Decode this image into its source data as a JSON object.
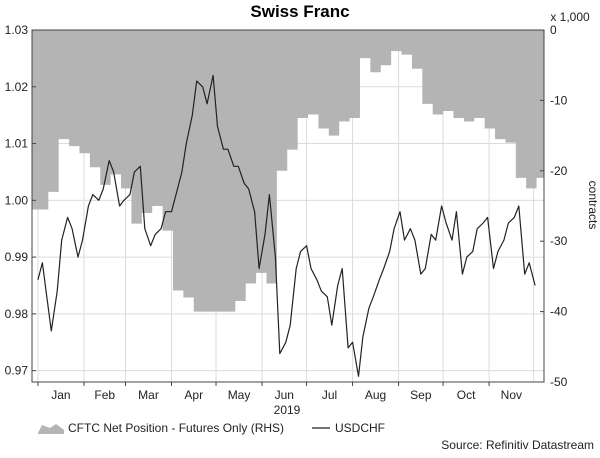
{
  "chart_data": {
    "type": "area",
    "title": "Swiss Franc",
    "xlabel": "2019",
    "year_label": "2019",
    "months": [
      "Jan",
      "Feb",
      "Mar",
      "Apr",
      "May",
      "Jun",
      "Jul",
      "Aug",
      "Sep",
      "Oct",
      "Nov"
    ],
    "y_left": {
      "label": "",
      "range": [
        0.968,
        1.03
      ],
      "ticks": [
        "0.97",
        "0.98",
        "0.99",
        "1.00",
        "1.01",
        "1.02",
        "1.03"
      ]
    },
    "y_right": {
      "label": "contracts",
      "multiplier_label": "x 1,000",
      "range": [
        -50,
        0
      ],
      "ticks": [
        "0",
        "-10",
        "-20",
        "-30",
        "-40",
        "-50"
      ]
    },
    "grid": true,
    "legend_position": "bottom-left",
    "source": "Source: Refinitiv Datastream",
    "series": [
      {
        "name": "CFTC Net Position - Futures Only (RHS)",
        "axis": "right",
        "style": "area",
        "color": "#b4b4b4",
        "x": [
          "2019-01-01",
          "2019-01-08",
          "2019-01-15",
          "2019-01-22",
          "2019-01-29",
          "2019-02-05",
          "2019-02-12",
          "2019-02-19",
          "2019-02-26",
          "2019-03-05",
          "2019-03-12",
          "2019-03-19",
          "2019-03-26",
          "2019-04-02",
          "2019-04-09",
          "2019-04-16",
          "2019-04-23",
          "2019-04-30",
          "2019-05-07",
          "2019-05-14",
          "2019-05-21",
          "2019-05-28",
          "2019-06-04",
          "2019-06-11",
          "2019-06-18",
          "2019-06-25",
          "2019-07-02",
          "2019-07-09",
          "2019-07-16",
          "2019-07-23",
          "2019-07-30",
          "2019-08-06",
          "2019-08-13",
          "2019-08-20",
          "2019-08-27",
          "2019-09-03",
          "2019-09-10",
          "2019-09-17",
          "2019-09-24",
          "2019-10-01",
          "2019-10-08",
          "2019-10-15",
          "2019-10-22",
          "2019-10-29",
          "2019-11-05",
          "2019-11-12",
          "2019-11-19",
          "2019-11-26",
          "2019-12-03"
        ],
        "values": [
          -25.5,
          -23.0,
          -15.5,
          -16.5,
          -17.5,
          -19.5,
          -22.0,
          -20.5,
          -22.5,
          -27.5,
          -26.0,
          -25.0,
          -28.5,
          -37.0,
          -38.0,
          -40.0,
          -40.0,
          -40.0,
          -40.0,
          -38.5,
          -36.0,
          -34.5,
          -36.0,
          -20.0,
          -17.0,
          -12.5,
          -12.0,
          -14.0,
          -15.0,
          -13.0,
          -12.5,
          -4.0,
          -6.0,
          -5.0,
          -3.0,
          -3.5,
          -5.5,
          -10.5,
          -12.0,
          -11.5,
          -12.5,
          -13.0,
          -12.5,
          -14.0,
          -15.5,
          -16.0,
          -21.0,
          -22.5,
          -21.0
        ]
      },
      {
        "name": "USDCHF",
        "axis": "left",
        "style": "line",
        "color": "#222222",
        "x": [
          "2019-01-01",
          "2019-01-04",
          "2019-01-07",
          "2019-01-10",
          "2019-01-14",
          "2019-01-17",
          "2019-01-21",
          "2019-01-24",
          "2019-01-28",
          "2019-01-31",
          "2019-02-04",
          "2019-02-07",
          "2019-02-11",
          "2019-02-14",
          "2019-02-18",
          "2019-02-21",
          "2019-02-25",
          "2019-02-28",
          "2019-03-04",
          "2019-03-07",
          "2019-03-11",
          "2019-03-14",
          "2019-03-18",
          "2019-03-21",
          "2019-03-25",
          "2019-03-28",
          "2019-04-01",
          "2019-04-04",
          "2019-04-08",
          "2019-04-11",
          "2019-04-15",
          "2019-04-18",
          "2019-04-22",
          "2019-04-25",
          "2019-04-29",
          "2019-05-02",
          "2019-05-06",
          "2019-05-09",
          "2019-05-13",
          "2019-05-16",
          "2019-05-20",
          "2019-05-23",
          "2019-05-27",
          "2019-05-30",
          "2019-06-03",
          "2019-06-06",
          "2019-06-10",
          "2019-06-13",
          "2019-06-17",
          "2019-06-20",
          "2019-06-24",
          "2019-06-27",
          "2019-07-01",
          "2019-07-04",
          "2019-07-08",
          "2019-07-11",
          "2019-07-15",
          "2019-07-18",
          "2019-07-22",
          "2019-07-25",
          "2019-07-29",
          "2019-08-01",
          "2019-08-05",
          "2019-08-08",
          "2019-08-12",
          "2019-08-15",
          "2019-08-19",
          "2019-08-22",
          "2019-08-26",
          "2019-08-29",
          "2019-09-02",
          "2019-09-05",
          "2019-09-09",
          "2019-09-12",
          "2019-09-16",
          "2019-09-19",
          "2019-09-23",
          "2019-09-26",
          "2019-09-30",
          "2019-10-03",
          "2019-10-07",
          "2019-10-10",
          "2019-10-14",
          "2019-10-17",
          "2019-10-21",
          "2019-10-24",
          "2019-10-28",
          "2019-10-31",
          "2019-11-04",
          "2019-11-07",
          "2019-11-11",
          "2019-11-14",
          "2019-11-18",
          "2019-11-21",
          "2019-11-25",
          "2019-11-28",
          "2019-12-02"
        ],
        "values": [
          0.986,
          0.989,
          0.983,
          0.977,
          0.984,
          0.993,
          0.997,
          0.995,
          0.99,
          0.993,
          0.999,
          1.001,
          1.0,
          1.002,
          1.007,
          1.005,
          0.999,
          1.0,
          1.001,
          1.005,
          1.006,
          0.995,
          0.992,
          0.994,
          0.995,
          0.998,
          0.998,
          1.001,
          1.005,
          1.01,
          1.015,
          1.021,
          1.02,
          1.017,
          1.022,
          1.013,
          1.009,
          1.009,
          1.006,
          1.006,
          1.003,
          1.002,
          0.998,
          0.988,
          0.994,
          1.001,
          0.99,
          0.973,
          0.975,
          0.978,
          0.988,
          0.991,
          0.992,
          0.988,
          0.986,
          0.984,
          0.983,
          0.978,
          0.985,
          0.988,
          0.974,
          0.975,
          0.969,
          0.976,
          0.981,
          0.983,
          0.986,
          0.988,
          0.991,
          0.995,
          0.998,
          0.993,
          0.995,
          0.993,
          0.987,
          0.988,
          0.994,
          0.993,
          0.999,
          0.996,
          0.993,
          0.998,
          0.987,
          0.99,
          0.991,
          0.995,
          0.996,
          0.997,
          0.988,
          0.991,
          0.993,
          0.996,
          0.997,
          0.999,
          0.987,
          0.989,
          0.985
        ]
      }
    ]
  }
}
